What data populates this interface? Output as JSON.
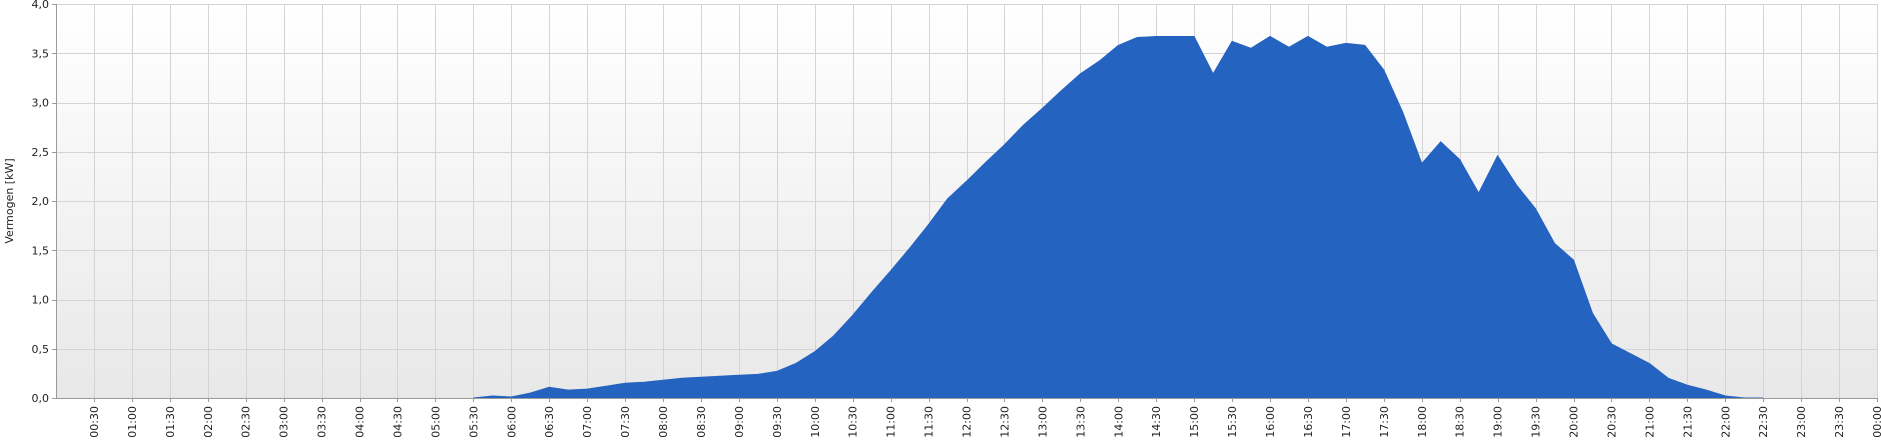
{
  "chart_data": {
    "type": "area",
    "ylabel": "Vermogen [kW]",
    "ylim": [
      0,
      4.0
    ],
    "yticks": [
      "0,0",
      "0,5",
      "1,0",
      "1,5",
      "2,0",
      "2,5",
      "3,0",
      "3,5",
      "4,0"
    ],
    "yticks_values": [
      0,
      0.5,
      1.0,
      1.5,
      2.0,
      2.5,
      3.0,
      3.5,
      4.0
    ],
    "xticks": [
      "00:30",
      "01:00",
      "01:30",
      "02:00",
      "02:30",
      "03:00",
      "03:30",
      "04:00",
      "04:30",
      "05:00",
      "05:30",
      "06:00",
      "06:30",
      "07:00",
      "07:30",
      "08:00",
      "08:30",
      "09:00",
      "09:30",
      "10:00",
      "10:30",
      "11:00",
      "11:30",
      "12:00",
      "12:30",
      "13:00",
      "13:30",
      "14:00",
      "14:30",
      "15:00",
      "15:30",
      "16:00",
      "16:30",
      "17:00",
      "17:30",
      "18:00",
      "18:30",
      "19:00",
      "19:30",
      "20:00",
      "20:30",
      "21:00",
      "21:30",
      "22:00",
      "22:30",
      "23:00",
      "23:30",
      "00:00"
    ],
    "grid": true,
    "colors": {
      "area": "#2563c0",
      "grid": "#d4d4d4",
      "axis": "#9a9a9a",
      "background_top": "#ffffff",
      "background_bottom": "#e8e8e8"
    },
    "series": [
      {
        "x": [
          "05:30",
          "05:45",
          "06:00",
          "06:15",
          "06:30",
          "06:45",
          "07:00",
          "07:15",
          "07:30",
          "07:45",
          "08:00",
          "08:15",
          "08:30",
          "08:45",
          "09:00",
          "09:15",
          "09:30",
          "09:45",
          "10:00",
          "10:15",
          "10:30",
          "10:45",
          "11:00",
          "11:15",
          "11:30",
          "11:45",
          "12:00",
          "12:15",
          "12:30",
          "12:45",
          "13:00",
          "13:15",
          "13:30",
          "13:45",
          "14:00",
          "14:15",
          "14:30",
          "14:45",
          "15:00",
          "15:15",
          "15:30",
          "15:45",
          "16:00",
          "16:15",
          "16:30",
          "16:45",
          "17:00",
          "17:15",
          "17:30",
          "17:45",
          "18:00",
          "18:15",
          "18:30",
          "18:45",
          "19:00",
          "19:15",
          "19:30",
          "19:45",
          "20:00",
          "20:15",
          "20:30",
          "20:45",
          "21:00",
          "21:15",
          "21:30",
          "21:45",
          "22:00",
          "22:15",
          "22:30"
        ],
        "values": [
          0.0,
          0.02,
          0.01,
          0.05,
          0.11,
          0.08,
          0.09,
          0.12,
          0.15,
          0.16,
          0.18,
          0.2,
          0.21,
          0.22,
          0.23,
          0.24,
          0.27,
          0.35,
          0.47,
          0.63,
          0.84,
          1.07,
          1.29,
          1.52,
          1.76,
          2.02,
          2.2,
          2.39,
          2.57,
          2.77,
          2.94,
          3.12,
          3.29,
          3.42,
          3.58,
          3.66,
          3.67,
          3.67,
          3.67,
          3.29,
          3.62,
          3.55,
          3.67,
          3.56,
          3.67,
          3.56,
          3.6,
          3.58,
          3.33,
          2.9,
          2.38,
          2.6,
          2.42,
          2.08,
          2.46,
          2.16,
          1.92,
          1.57,
          1.4,
          0.86,
          0.55,
          0.45,
          0.35,
          0.2,
          0.13,
          0.08,
          0.02,
          0.0,
          0.0
        ]
      }
    ]
  }
}
